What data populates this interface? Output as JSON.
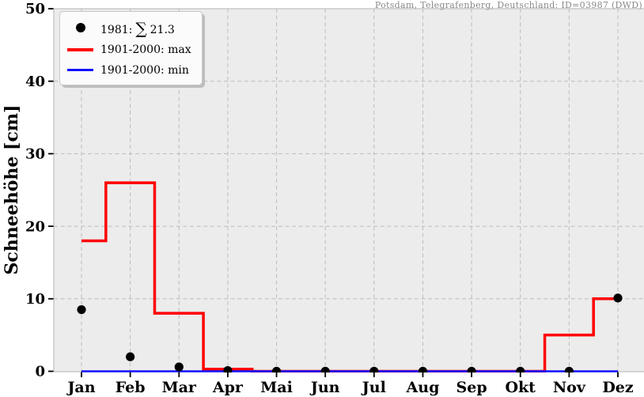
{
  "station_label": "Potsdam, Telegrafenberg, Deutschland: ID=03987 (DWD)",
  "colors": {
    "plot_bg": "#ececec",
    "grid": "#bcbcbc",
    "spine": "#b3b3b3",
    "tick": "#000000",
    "max_line": "#ff0000",
    "min_line": "#1010ff",
    "dot": "#000000",
    "station_text": "#8a8a8a",
    "legend_bg": "#fbfbfb",
    "legend_border": "#c8c8c8",
    "legend_shadow": "#bdbdbd"
  },
  "legend": {
    "items": [
      {
        "prefix": "1981:",
        "sum_symbol": "∑",
        "sum_value": "21.3",
        "marker": "dot",
        "color": "#000000"
      },
      {
        "label": "1901-2000: max",
        "marker": "line",
        "color": "#ff0000"
      },
      {
        "label": "1901-2000: min",
        "marker": "line",
        "color": "#1010ff"
      }
    ]
  },
  "chart_data": {
    "type": "line",
    "title": "",
    "xlabel": "",
    "ylabel": "Schneehöhe [cm]",
    "categories": [
      "Jan",
      "Feb",
      "Mar",
      "Apr",
      "Mai",
      "Jun",
      "Jul",
      "Aug",
      "Sep",
      "Okt",
      "Nov",
      "Dez"
    ],
    "yticks": [
      0,
      10,
      20,
      30,
      40,
      50
    ],
    "ylim": [
      0,
      50
    ],
    "grid": "dashed",
    "legend_position": "upper-left",
    "series": [
      {
        "name": "1981: ∑ 21.3",
        "style": "scatter-dots",
        "color": "#000000",
        "annual_sum": 21.3,
        "values": [
          8.5,
          2.0,
          0.6,
          0.1,
          0,
          0,
          0,
          0,
          0,
          0,
          0,
          10.1
        ]
      },
      {
        "name": "1901-2000: max",
        "style": "step-mid",
        "color": "#ff0000",
        "line_width": 3.5,
        "values": [
          18,
          26,
          8,
          0.3,
          0,
          0,
          0,
          0,
          0,
          0,
          5,
          10
        ]
      },
      {
        "name": "1901-2000: min",
        "style": "step-mid",
        "color": "#1010ff",
        "line_width": 2.5,
        "values": [
          0,
          0,
          0,
          0,
          0,
          0,
          0,
          0,
          0,
          0,
          0,
          0
        ]
      }
    ]
  }
}
